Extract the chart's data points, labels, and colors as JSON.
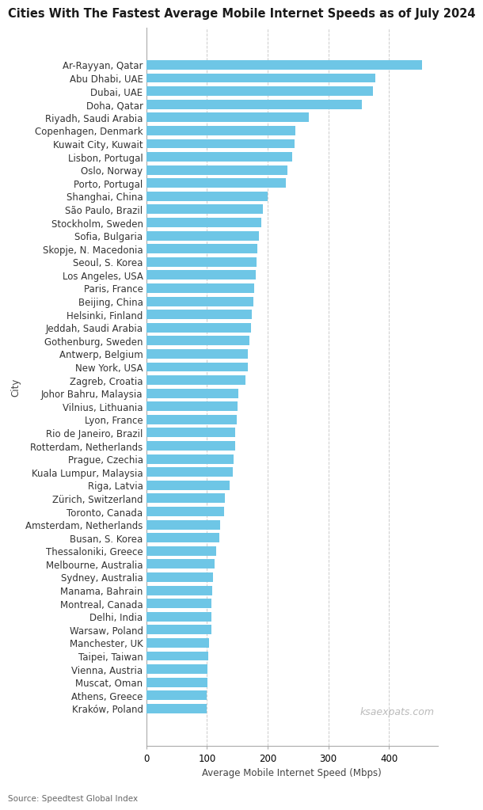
{
  "title": "Cities With The Fastest Average Mobile Internet Speeds as of July 2024",
  "xlabel": "Average Mobile Internet Speed (Mbps)",
  "ylabel": "City",
  "source": "Source: Speedtest Global Index",
  "watermark": "ksaexpats.com",
  "bar_color": "#6EC6E6",
  "background_color": "#ffffff",
  "grid_color": "#cccccc",
  "cities": [
    "Ar-Rayyan, Qatar",
    "Abu Dhabi, UAE",
    "Dubai, UAE",
    "Doha, Qatar",
    "Riyadh, Saudi Arabia",
    "Copenhagen, Denmark",
    "Kuwait City, Kuwait",
    "Lisbon, Portugal",
    "Oslo, Norway",
    "Porto, Portugal",
    "Shanghai, China",
    "São Paulo, Brazil",
    "Stockholm, Sweden",
    "Sofia, Bulgaria",
    "Skopje, N. Macedonia",
    "Seoul, S. Korea",
    "Los Angeles, USA",
    "Paris, France",
    "Beijing, China",
    "Helsinki, Finland",
    "Jeddah, Saudi Arabia",
    "Gothenburg, Sweden",
    "Antwerp, Belgium",
    "New York, USA",
    "Zagreb, Croatia",
    "Johor Bahru, Malaysia",
    "Vilnius, Lithuania",
    "Lyon, France",
    "Rio de Janeiro, Brazil",
    "Rotterdam, Netherlands",
    "Prague, Czechia",
    "Kuala Lumpur, Malaysia",
    "Riga, Latvia",
    "Zürich, Switzerland",
    "Toronto, Canada",
    "Amsterdam, Netherlands",
    "Busan, S. Korea",
    "Thessaloniki, Greece",
    "Melbourne, Australia",
    "Sydney, Australia",
    "Manama, Bahrain",
    "Montreal, Canada",
    "Delhi, India",
    "Warsaw, Poland",
    "Manchester, UK",
    "Taipei, Taiwan",
    "Vienna, Austria",
    "Muscat, Oman",
    "Athens, Greece",
    "Kraków, Poland"
  ],
  "values": [
    455,
    378,
    373,
    355,
    268,
    246,
    244,
    240,
    233,
    230,
    200,
    192,
    190,
    185,
    183,
    182,
    180,
    178,
    176,
    174,
    173,
    170,
    168,
    167,
    163,
    152,
    150,
    149,
    147,
    146,
    144,
    143,
    138,
    130,
    128,
    122,
    120,
    115,
    112,
    110,
    109,
    108,
    107,
    107,
    103,
    102,
    101,
    101,
    100,
    99
  ],
  "xlim": [
    0,
    480
  ],
  "xticks": [
    0,
    100,
    200,
    300,
    400
  ],
  "title_fontsize": 10.5,
  "label_fontsize": 8.5,
  "tick_fontsize": 8.5,
  "source_fontsize": 7.5,
  "watermark_fontsize": 9
}
